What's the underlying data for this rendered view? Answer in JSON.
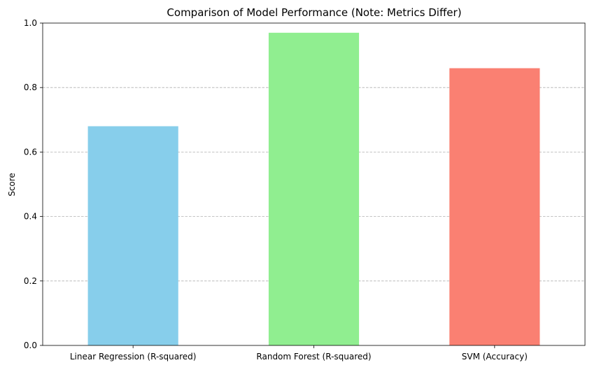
{
  "chart_data": {
    "type": "bar",
    "title": "Comparison of Model Performance (Note: Metrics Differ)",
    "xlabel": "",
    "ylabel": "Score",
    "categories": [
      "Linear Regression (R-squared)",
      "Random Forest (R-squared)",
      "SVM (Accuracy)"
    ],
    "values": [
      0.68,
      0.97,
      0.86
    ],
    "colors": [
      "#87ceeb",
      "#90ee90",
      "#fa8072"
    ],
    "ylim": [
      0,
      1
    ],
    "yticks": [
      "0.0",
      "0.2",
      "0.4",
      "0.6",
      "0.8",
      "1.0"
    ],
    "grid": "y-dashed",
    "legend": "none"
  }
}
